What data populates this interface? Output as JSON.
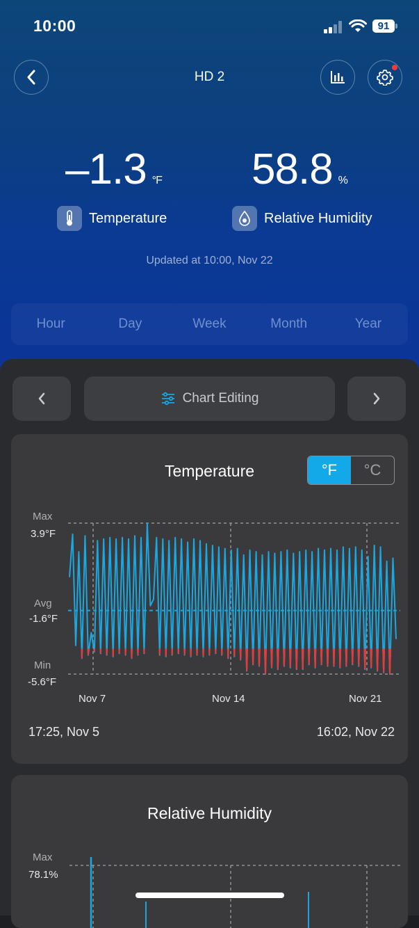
{
  "status_bar": {
    "time": "10:00",
    "battery": "91"
  },
  "header": {
    "title": "HD 2"
  },
  "readings": {
    "temperature": {
      "value": "–1.3",
      "unit": "°F",
      "label": "Temperature"
    },
    "humidity": {
      "value": "58.8",
      "unit": "%",
      "label": "Relative Humidity"
    },
    "updated": "Updated at 10:00,  Nov 22"
  },
  "range_tabs": [
    "Hour",
    "Day",
    "Week",
    "Month",
    "Year"
  ],
  "nav": {
    "edit_label": "Chart Editing"
  },
  "temp_chart": {
    "title": "Temperature",
    "unit_f": "°F",
    "unit_c": "°C",
    "max_label": "Max",
    "max_value": "3.9°F",
    "avg_label": "Avg",
    "avg_value": "-1.6°F",
    "min_label": "Min",
    "min_value": "-5.6°F",
    "x_ticks": [
      "Nov 7",
      "Nov 14",
      "Nov 21"
    ],
    "start": "17:25,  Nov 5",
    "end": "16:02,  Nov 22"
  },
  "hum_chart": {
    "title": "Relative Humidity",
    "max_label": "Max",
    "max_value": "78.1%"
  },
  "chart_data": {
    "type": "line",
    "title": "Temperature",
    "xlabel": "",
    "ylabel": "",
    "x_range": [
      "17:25, Nov 5",
      "16:02, Nov 22"
    ],
    "x_ticks": [
      "Nov 7",
      "Nov 14",
      "Nov 21"
    ],
    "ylim": [
      -5.6,
      3.9
    ],
    "reference_lines": {
      "max": 3.9,
      "avg": -1.6,
      "min": -5.6
    },
    "grid": true,
    "colors": {
      "line": "#1ba8e0",
      "below_threshold": "#e53b3b"
    },
    "series": [
      {
        "values": [
          0.5,
          3.2,
          -3.8,
          2.1,
          -4.6,
          3.1,
          -4.4,
          -3.0,
          -4.2,
          2.8,
          -4.3,
          2.9,
          -4.4,
          3.0,
          -4.5,
          2.9,
          -4.3,
          3.0,
          -4.4,
          2.9,
          -4.6,
          3.1,
          -4.4,
          3.0,
          -4.3,
          3.9,
          -1.3,
          -0.9,
          3.0,
          -4.4,
          2.9,
          -4.5,
          2.8,
          -4.4,
          3.0,
          -4.3,
          2.9,
          -4.4,
          2.7,
          -4.5,
          2.9,
          -4.4,
          2.8,
          -4.5,
          2.6,
          -4.4,
          2.5,
          -4.3,
          2.4,
          -4.4,
          2.3,
          -4.6,
          2.2,
          -4.5,
          2.3,
          -4.7,
          1.9,
          -5.4,
          2.2,
          -5.0,
          2.1,
          -5.1,
          1.9,
          -5.6,
          2.1,
          -5.2,
          2.0,
          -5.3,
          2.1,
          -5.1,
          2.2,
          -5.2,
          2.0,
          -5.3,
          2.1,
          -5.3,
          2.2,
          -5.0,
          2.1,
          -5.2,
          2.3,
          -5.0,
          2.2,
          -5.1,
          2.3,
          -5.1,
          2.2,
          -5.2,
          2.4,
          -5.1,
          2.3,
          -5.0,
          2.4,
          -5.1,
          2.2,
          -5.3,
          1.8,
          -5.2,
          2.5,
          -5.4,
          2.4,
          -5.5,
          1.5,
          -5.6,
          1.7,
          -3.4
        ]
      }
    ]
  }
}
